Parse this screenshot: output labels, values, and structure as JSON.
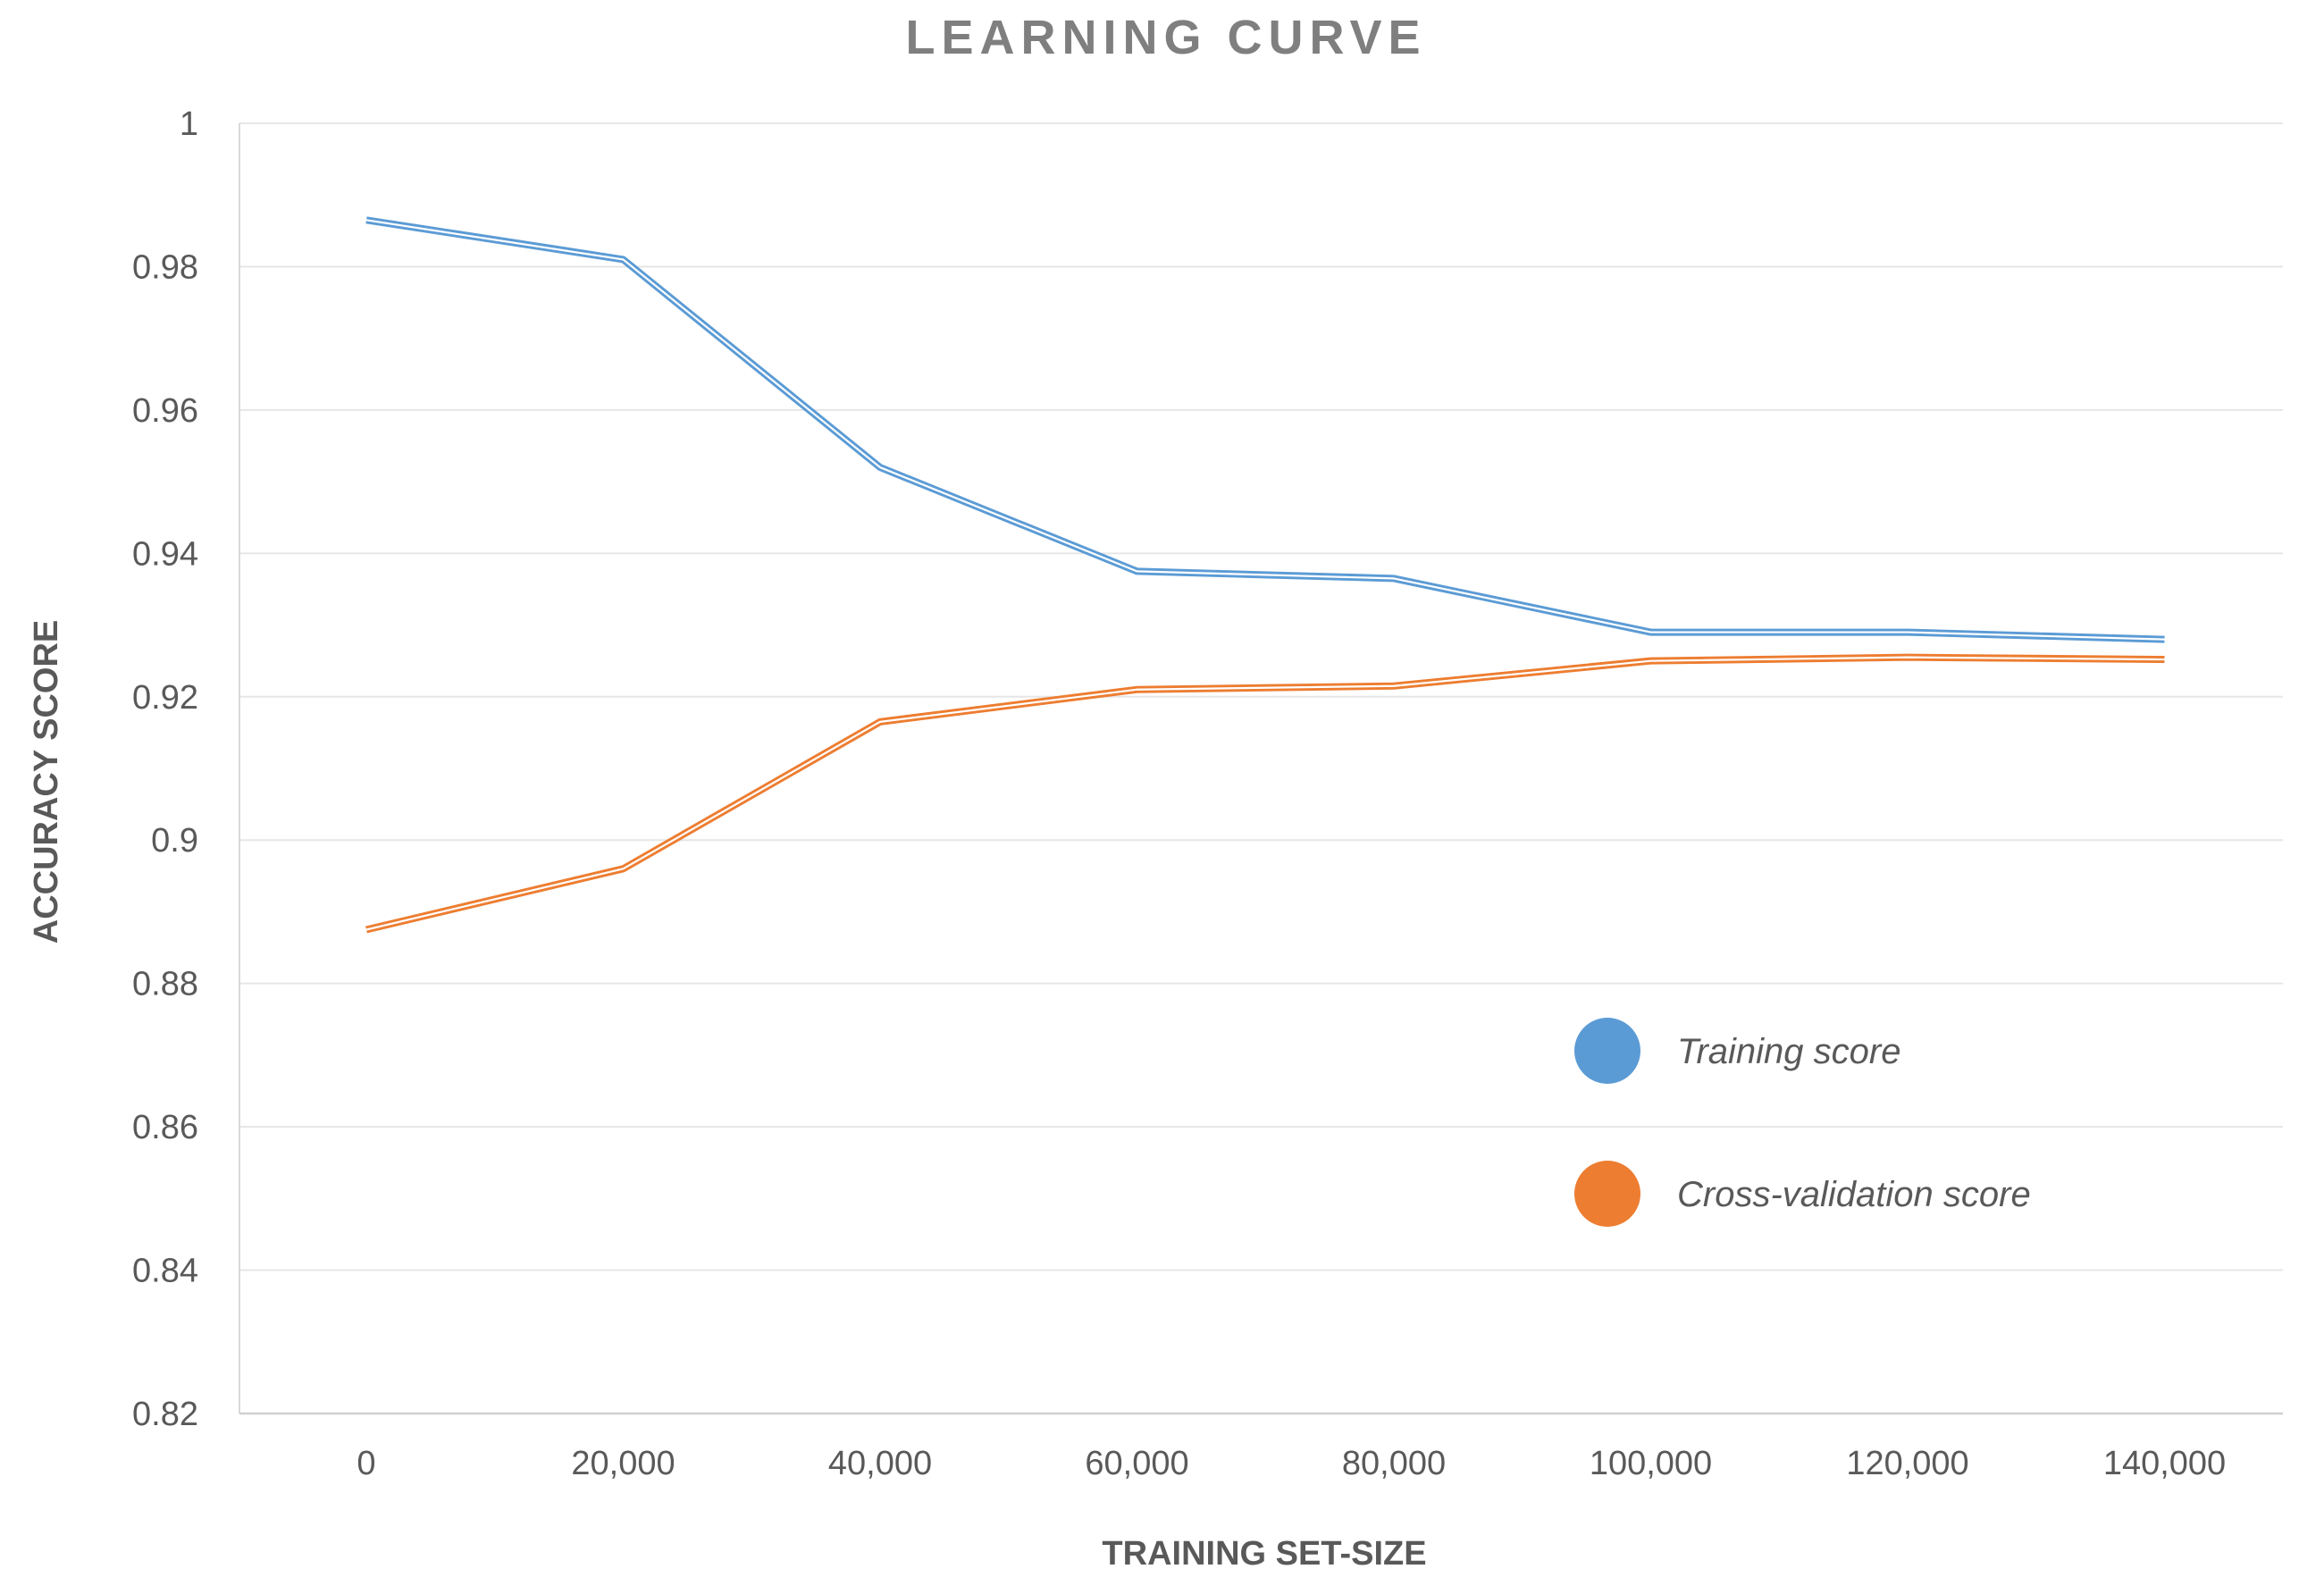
{
  "chart_data": {
    "type": "line",
    "title": "LEARNING CURVE",
    "xlabel": "TRAINING SET-SIZE",
    "ylabel": "ACCURACY SCORE",
    "x": [
      0,
      20000,
      40000,
      60000,
      80000,
      100000,
      120000,
      140000
    ],
    "xtick_labels": [
      "0",
      "20,000",
      "40,000",
      "60,000",
      "80,000",
      "100,000",
      "120,000",
      "140,000"
    ],
    "ytick_labels": [
      "0.82",
      "0.84",
      "0.86",
      "0.88",
      "0.9",
      "0.92",
      "0.94",
      "0.96",
      "0.98",
      "1"
    ],
    "yticks": [
      0.82,
      0.84,
      0.86,
      0.88,
      0.9,
      0.92,
      0.94,
      0.96,
      0.98,
      1.0
    ],
    "ylim": [
      0.82,
      1.0
    ],
    "grid": true,
    "legend_position": "right-center",
    "series": [
      {
        "name": "Training score",
        "color": "#5b9bd5",
        "values": [
          0.9865,
          0.981,
          0.952,
          0.9375,
          0.9365,
          0.929,
          0.929,
          0.928
        ]
      },
      {
        "name": "Cross-validation score",
        "color": "#ed7d31",
        "values": [
          0.8875,
          0.896,
          0.9165,
          0.921,
          0.9215,
          0.925,
          0.9255,
          0.9252
        ]
      }
    ]
  }
}
